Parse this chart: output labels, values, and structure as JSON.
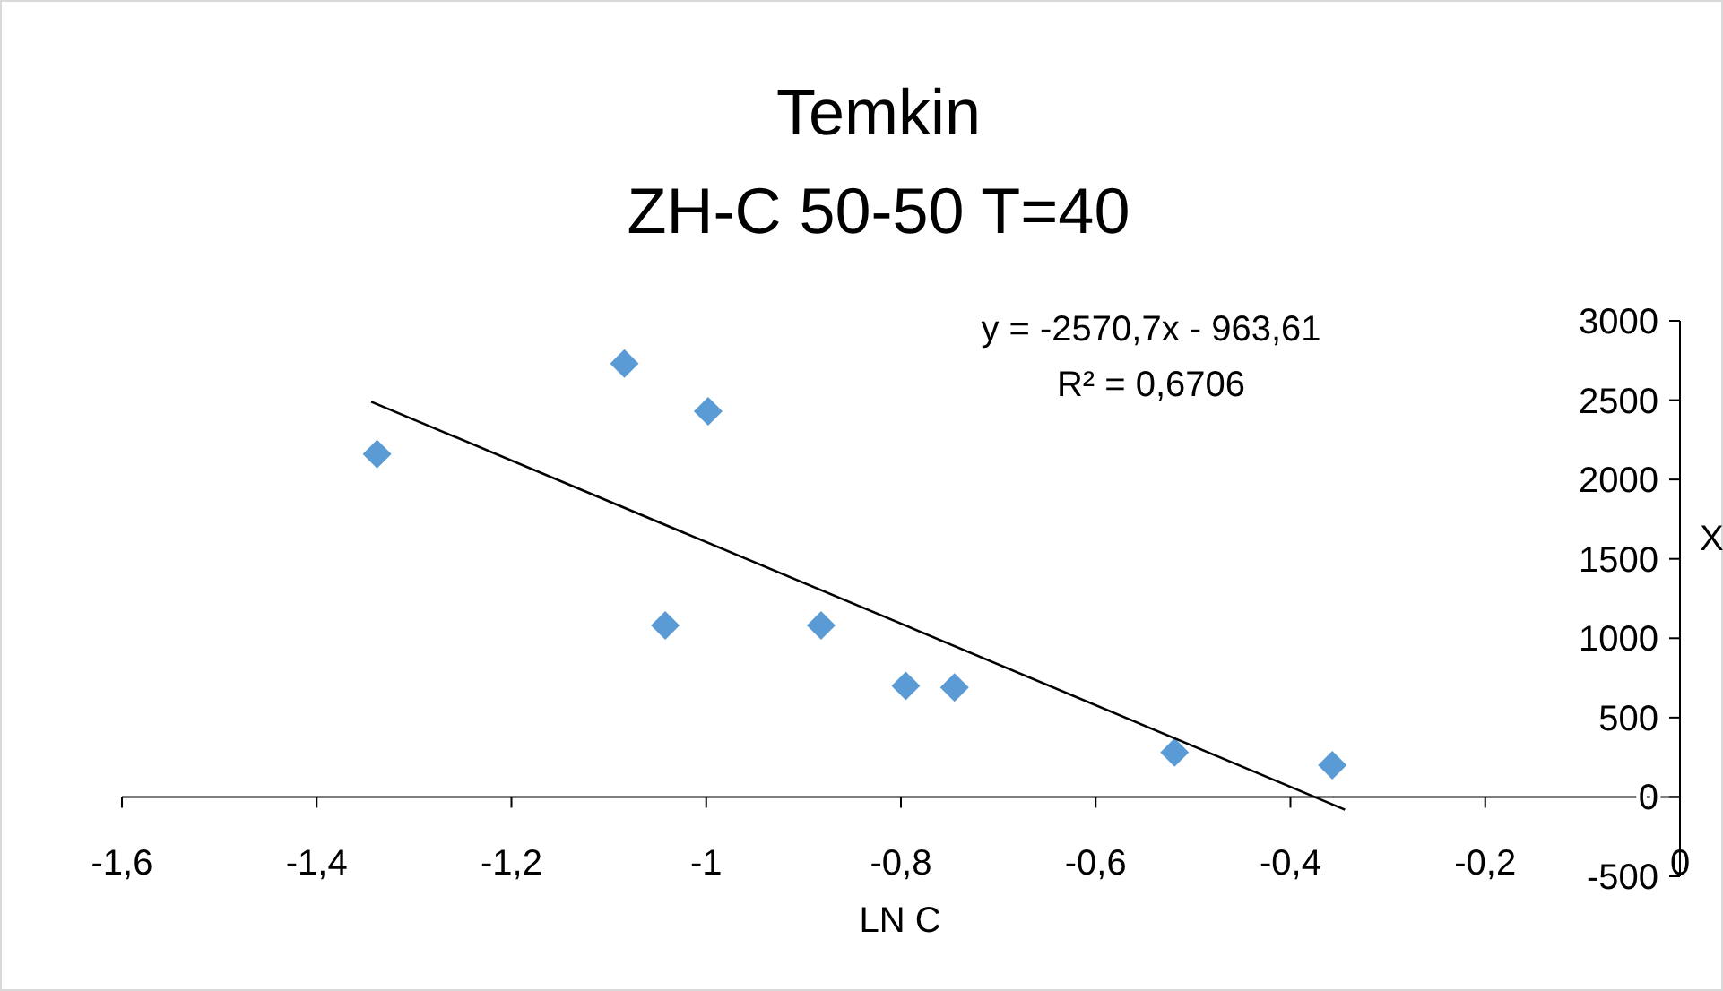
{
  "chart_data": {
    "type": "scatter",
    "title": "Temkin",
    "subtitle": "ZH-C 50-50  T=40",
    "xlabel": "LN   C",
    "ylabel": "X",
    "annotations": [
      "y = -2570,7x - 963,61",
      "R² = 0,6706"
    ],
    "xlim": [
      -1.6,
      0
    ],
    "xticks": [
      {
        "value": -1.6,
        "label": "-1,6"
      },
      {
        "value": -1.4,
        "label": "-1,4"
      },
      {
        "value": -1.2,
        "label": "-1,2"
      },
      {
        "value": -1,
        "label": "-1"
      },
      {
        "value": -0.8,
        "label": "-0,8"
      },
      {
        "value": -0.6,
        "label": "-0,6"
      },
      {
        "value": -0.4,
        "label": "-0,4"
      },
      {
        "value": -0.2,
        "label": "-0,2"
      },
      0
    ],
    "ylim": [
      -500,
      3000
    ],
    "yticks": [
      -500,
      0,
      500,
      1000,
      1500,
      2000,
      2500,
      3000
    ],
    "grid": false,
    "marker": "diamond",
    "series": [
      {
        "color": "#5b9bd5",
        "x": [
          -1.338,
          -1.084,
          -0.998,
          -1.042,
          -0.882,
          -0.795,
          -0.745,
          -0.519,
          -0.357
        ],
        "values": [
          2160,
          2730,
          2430,
          1080,
          1080,
          700,
          690,
          280,
          200
        ]
      },
      {
        "type": "line",
        "color": "#000000",
        "line_style": "solid",
        "marker": "none",
        "x": [
          -1.344,
          -0.344
        ],
        "values": [
          2490,
          -80
        ]
      }
    ]
  }
}
